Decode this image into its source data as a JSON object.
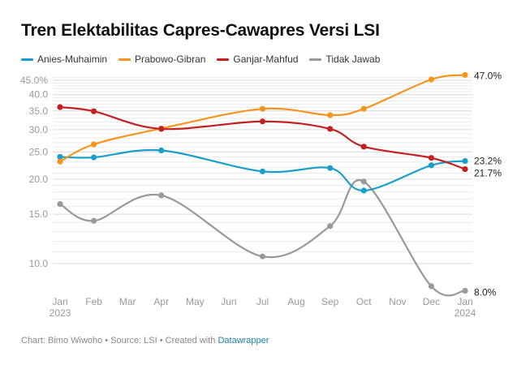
{
  "title": "Tren Elektabilitas Capres-Cawapres Versi LSI",
  "footer": {
    "credit": "Chart: Bimo Wiwoho • Source: LSI • Created with ",
    "tool": "Datawrapper"
  },
  "chart_data": {
    "type": "line",
    "title": "Tren Elektabilitas Capres-Cawapres Versi LSI",
    "xlabel": "",
    "ylabel": "",
    "y_scale": "log",
    "ylim": [
      8,
      47
    ],
    "grid": true,
    "legend_position": "top-left",
    "y_ticks": [
      {
        "value": 10,
        "label": "10.0"
      },
      {
        "value": 15,
        "label": "15.0"
      },
      {
        "value": 20,
        "label": "20.0"
      },
      {
        "value": 25,
        "label": "25.0"
      },
      {
        "value": 30,
        "label": "30.0"
      },
      {
        "value": 35,
        "label": "35.0"
      },
      {
        "value": 40,
        "label": "40.0"
      },
      {
        "value": 45,
        "label": "45.0%"
      }
    ],
    "x_ticks": [
      {
        "month": 0,
        "label": "Jan",
        "sub": "2023"
      },
      {
        "month": 1,
        "label": "Feb",
        "sub": ""
      },
      {
        "month": 2,
        "label": "Mar",
        "sub": ""
      },
      {
        "month": 3,
        "label": "Apr",
        "sub": ""
      },
      {
        "month": 4,
        "label": "May",
        "sub": ""
      },
      {
        "month": 5,
        "label": "Jun",
        "sub": ""
      },
      {
        "month": 6,
        "label": "Jul",
        "sub": ""
      },
      {
        "month": 7,
        "label": "Aug",
        "sub": ""
      },
      {
        "month": 8,
        "label": "Sep",
        "sub": ""
      },
      {
        "month": 9,
        "label": "Oct",
        "sub": ""
      },
      {
        "month": 10,
        "label": "Nov",
        "sub": ""
      },
      {
        "month": 11,
        "label": "Dec",
        "sub": ""
      },
      {
        "month": 12,
        "label": "Jan",
        "sub": "2024"
      }
    ],
    "x": [
      "2023-01",
      "2023-02",
      "2023-04",
      "2023-07",
      "2023-09",
      "2023-10",
      "2023-12",
      "2024-01"
    ],
    "x_month_index": [
      0,
      1,
      3,
      6,
      8,
      9,
      11,
      12
    ],
    "series": [
      {
        "name": "Anies-Muhaimin",
        "color": "#1b9fc9",
        "values": [
          24.0,
          23.9,
          25.3,
          21.3,
          21.9,
          18.2,
          22.4,
          23.2
        ],
        "end_label": "23.2%"
      },
      {
        "name": "Prabowo-Gibran",
        "color": "#f7941d",
        "values": [
          23.1,
          26.6,
          30.3,
          35.6,
          33.8,
          35.6,
          45.3,
          47.0
        ],
        "end_label": "47.0%"
      },
      {
        "name": "Ganjar-Mahfud",
        "color": "#c4201f",
        "values": [
          36.1,
          34.9,
          30.2,
          32.1,
          30.2,
          26.1,
          23.8,
          21.7
        ],
        "end_label": "21.7%"
      },
      {
        "name": "Tidak Jawab",
        "color": "#999999",
        "values": [
          16.3,
          14.2,
          17.5,
          10.6,
          13.6,
          19.6,
          8.3,
          8.0
        ],
        "end_label": "8.0%"
      }
    ]
  }
}
